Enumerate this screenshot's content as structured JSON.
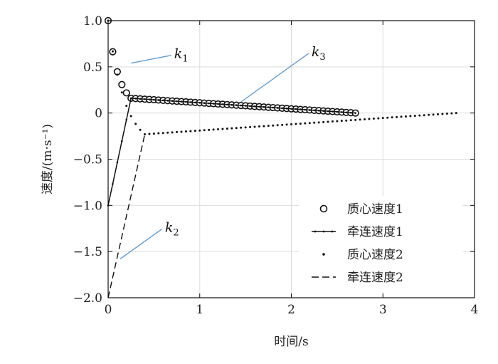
{
  "chart_data": {
    "type": "scatter",
    "xlabel": "时间/s",
    "ylabel": "速度/(m·s⁻¹)",
    "xlim": [
      0,
      4
    ],
    "ylim": [
      -2.0,
      1.0
    ],
    "xticks": [
      0,
      1,
      2,
      3,
      4
    ],
    "xtick_labels": [
      "0",
      "1",
      "2",
      "3",
      "4"
    ],
    "yticks": [
      1.0,
      0.5,
      0,
      -0.5,
      -1.0,
      -1.5,
      -2.0
    ],
    "ytick_labels": [
      "1.0",
      "0.5",
      "0",
      "−0.5",
      "−1.0",
      "−1.5",
      "−2.0"
    ],
    "grid": true,
    "legend_position": "bottom-right",
    "series": [
      {
        "name": "质心速度1",
        "marker": "open-circle",
        "segments": [
          {
            "x_start": 0.0,
            "y_start": 1.0,
            "x_end": 0.25,
            "y_end": 0.16,
            "step": 0.05,
            "curve": "convex-decay"
          },
          {
            "x_start": 0.25,
            "y_start": 0.16,
            "x_end": 2.7,
            "y_end": 0.0,
            "step": 0.05,
            "curve": "linear"
          }
        ]
      },
      {
        "name": "牵连速度1",
        "marker": "line-dots",
        "points": [
          [
            0.0,
            -1.0
          ],
          [
            0.25,
            0.16
          ],
          [
            2.7,
            0.0
          ]
        ]
      },
      {
        "name": "质心速度2",
        "marker": "dot",
        "segments": [
          {
            "x_start": 0.0,
            "y_start": 1.0,
            "x_end": 0.4,
            "y_end": -0.23,
            "step": 0.05,
            "curve": "convex-decay"
          },
          {
            "x_start": 0.4,
            "y_start": -0.23,
            "x_end": 3.78,
            "y_end": 0.0,
            "step": 0.05,
            "curve": "linear"
          }
        ]
      },
      {
        "name": "牵连速度2",
        "marker": "dashed-line",
        "points": [
          [
            0.0,
            -2.0
          ],
          [
            0.4,
            -0.23
          ]
        ]
      }
    ],
    "annotations": [
      {
        "label": "k",
        "sub": "1",
        "target": [
          0.25,
          0.54
        ],
        "text_at": [
          0.72,
          0.64
        ]
      },
      {
        "label": "k",
        "sub": "3",
        "target": [
          1.45,
          0.12
        ],
        "text_at": [
          2.22,
          0.66
        ]
      },
      {
        "label": "k",
        "sub": "2",
        "target": [
          0.13,
          -1.58
        ],
        "text_at": [
          0.62,
          -1.24
        ]
      }
    ]
  },
  "colors": {
    "annotation_line": "#5b9bd5",
    "series": "#111111",
    "grid": "#dddddd"
  }
}
